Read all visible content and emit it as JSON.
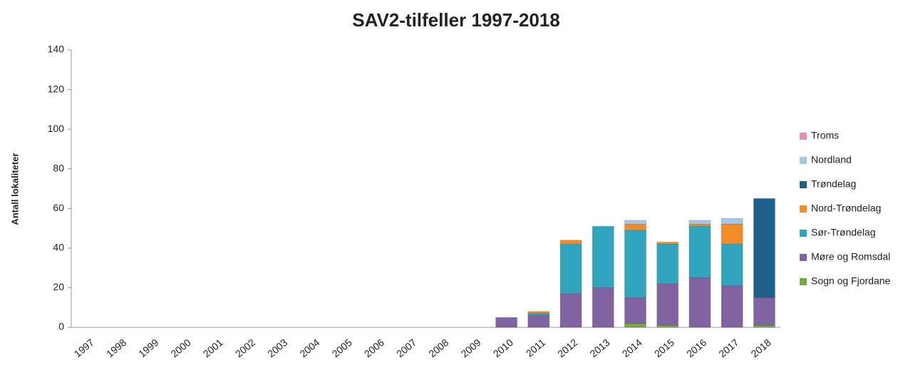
{
  "chart_data": {
    "type": "stacked_bar",
    "title": "SAV2-tilfeller 1997-2018",
    "y_label": "Antall lokaliteter",
    "categories": [
      "1997",
      "1998",
      "1999",
      "2000",
      "2001",
      "2002",
      "2003",
      "2004",
      "2005",
      "2006",
      "2007",
      "2008",
      "2009",
      "2010",
      "2011",
      "2012",
      "2013",
      "2014",
      "2015",
      "2016",
      "2017",
      "2018"
    ],
    "series": [
      {
        "name": "Sogn og Fjordane",
        "color": "#77a844",
        "values": [
          0,
          0,
          0,
          0,
          0,
          0,
          0,
          0,
          0,
          0,
          0,
          0,
          0,
          0,
          0,
          0,
          0,
          2,
          1,
          0,
          0,
          1
        ]
      },
      {
        "name": "Møre og Romsdal",
        "color": "#8064a2",
        "values": [
          0,
          0,
          0,
          0,
          0,
          0,
          0,
          0,
          0,
          0,
          0,
          0,
          0,
          5,
          6,
          17,
          20,
          13,
          21,
          25,
          21,
          14
        ]
      },
      {
        "name": "Sør-Trøndelag",
        "color": "#31a5bd",
        "values": [
          0,
          0,
          0,
          0,
          0,
          0,
          0,
          0,
          0,
          0,
          0,
          0,
          0,
          0,
          1,
          25,
          31,
          34,
          20,
          26,
          21,
          0
        ]
      },
      {
        "name": "Nord-Trøndelag",
        "color": "#f08c2a",
        "values": [
          0,
          0,
          0,
          0,
          0,
          0,
          0,
          0,
          0,
          0,
          0,
          0,
          0,
          0,
          1,
          2,
          0,
          3,
          1,
          1,
          10,
          0
        ]
      },
      {
        "name": "Trøndelag",
        "color": "#1f5f8c",
        "values": [
          0,
          0,
          0,
          0,
          0,
          0,
          0,
          0,
          0,
          0,
          0,
          0,
          0,
          0,
          0,
          0,
          0,
          0,
          0,
          0,
          0,
          50
        ]
      },
      {
        "name": "Nordland",
        "color": "#a7c6e4",
        "values": [
          0,
          0,
          0,
          0,
          0,
          0,
          0,
          0,
          0,
          0,
          0,
          0,
          0,
          0,
          0,
          0,
          0,
          2,
          0,
          2,
          3,
          0
        ]
      },
      {
        "name": "Troms",
        "color": "#e48fb5",
        "values": [
          0,
          0,
          0,
          0,
          0,
          0,
          0,
          0,
          0,
          0,
          0,
          0,
          0,
          0,
          0,
          0,
          0,
          0,
          0,
          0,
          0,
          0
        ]
      }
    ],
    "ylim": [
      0,
      140
    ],
    "yticks": [
      0,
      20,
      40,
      60,
      80,
      100,
      120,
      140
    ],
    "legend": "right"
  }
}
